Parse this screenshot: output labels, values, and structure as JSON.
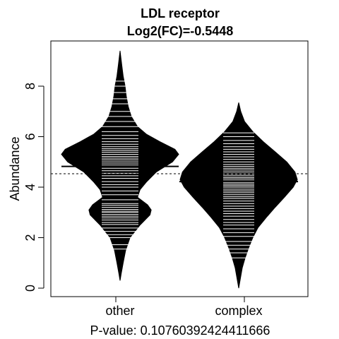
{
  "chart_data": {
    "type": "beanplot",
    "title": "LDL receptor",
    "subtitle": "Log2(FC)=-0.5448",
    "xlabel": "P-value: 0.10760392424411666",
    "ylabel": "Abundance",
    "categories": [
      "other",
      "complex"
    ],
    "ylim": [
      -0.25,
      9.8
    ],
    "yticks": [
      0,
      2,
      4,
      6,
      8
    ],
    "overall_mean": 4.53,
    "grid": false,
    "legend": "none",
    "colors": {
      "bean_fill": "#000000",
      "data_lines": "#ffffff",
      "mean_line": "#000000",
      "background": "#ffffff"
    },
    "series": [
      {
        "category": "other",
        "mean": 4.82,
        "density": [
          [
            0.3,
            0.0
          ],
          [
            0.6,
            0.02
          ],
          [
            1.0,
            0.05
          ],
          [
            1.5,
            0.09
          ],
          [
            2.0,
            0.16
          ],
          [
            2.5,
            0.32
          ],
          [
            2.9,
            0.48
          ],
          [
            3.1,
            0.5
          ],
          [
            3.3,
            0.44
          ],
          [
            3.6,
            0.28
          ],
          [
            3.9,
            0.32
          ],
          [
            4.2,
            0.42
          ],
          [
            4.6,
            0.58
          ],
          [
            5.0,
            0.84
          ],
          [
            5.3,
            0.94
          ],
          [
            5.5,
            0.88
          ],
          [
            5.8,
            0.64
          ],
          [
            6.1,
            0.42
          ],
          [
            6.4,
            0.28
          ],
          [
            6.8,
            0.18
          ],
          [
            7.2,
            0.13
          ],
          [
            7.6,
            0.1
          ],
          [
            8.0,
            0.08
          ],
          [
            8.4,
            0.05
          ],
          [
            8.8,
            0.03
          ],
          [
            9.1,
            0.015
          ],
          [
            9.4,
            0.0
          ]
        ],
        "points": [
          1.55,
          1.72,
          2.0,
          2.12,
          2.25,
          2.38,
          2.52,
          2.6,
          2.7,
          2.78,
          2.85,
          2.92,
          3.0,
          3.05,
          3.12,
          3.2,
          3.28,
          3.35,
          3.5,
          3.7,
          3.85,
          4.0,
          4.1,
          4.22,
          4.35,
          4.45,
          4.55,
          4.65,
          4.75,
          4.85,
          4.92,
          5.0,
          5.08,
          5.15,
          5.22,
          5.3,
          5.38,
          5.45,
          5.52,
          5.6,
          5.7,
          5.8,
          5.92,
          6.05,
          6.2,
          6.4,
          6.6,
          6.8,
          7.0,
          7.3,
          7.5,
          7.75,
          8.0,
          8.2
        ]
      },
      {
        "category": "complex",
        "mean": 4.22,
        "density": [
          [
            0.0,
            0.0
          ],
          [
            0.4,
            0.03
          ],
          [
            0.8,
            0.06
          ],
          [
            1.2,
            0.11
          ],
          [
            1.6,
            0.17
          ],
          [
            2.0,
            0.24
          ],
          [
            2.4,
            0.33
          ],
          [
            2.8,
            0.47
          ],
          [
            3.2,
            0.62
          ],
          [
            3.6,
            0.78
          ],
          [
            4.0,
            0.93
          ],
          [
            4.3,
            1.0
          ],
          [
            4.6,
            0.96
          ],
          [
            5.0,
            0.82
          ],
          [
            5.4,
            0.62
          ],
          [
            5.8,
            0.42
          ],
          [
            6.2,
            0.24
          ],
          [
            6.6,
            0.1
          ],
          [
            7.0,
            0.035
          ],
          [
            7.35,
            0.0
          ]
        ],
        "points": [
          1.2,
          1.4,
          1.55,
          1.7,
          1.85,
          2.05,
          2.2,
          2.35,
          2.5,
          2.6,
          2.72,
          2.85,
          2.95,
          3.05,
          3.15,
          3.25,
          3.35,
          3.45,
          3.55,
          3.62,
          3.7,
          3.78,
          3.85,
          3.92,
          4.0,
          4.06,
          4.12,
          4.18,
          4.25,
          4.32,
          4.38,
          4.45,
          4.52,
          4.6,
          4.68,
          4.75,
          4.82,
          4.9,
          5.0,
          5.1,
          5.2,
          5.3,
          5.4,
          5.5,
          5.6,
          5.72,
          5.85,
          6.0,
          6.15
        ]
      }
    ]
  }
}
